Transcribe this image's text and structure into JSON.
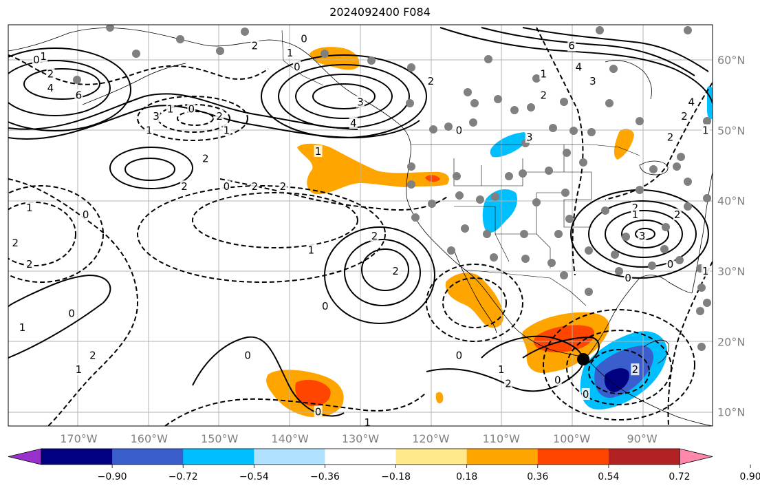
{
  "title": "2024092400 F084",
  "map": {
    "lon_range": [
      -180,
      -80
    ],
    "lat_range": [
      8,
      65
    ],
    "lon_ticks": [
      "170°W",
      "160°W",
      "150°W",
      "140°W",
      "130°W",
      "120°W",
      "110°W",
      "100°W",
      "90°W"
    ],
    "lat_ticks": [
      "10°N",
      "20°N",
      "30°N",
      "40°N",
      "50°N",
      "60°N"
    ],
    "grid": true
  },
  "colorbar": {
    "labels": [
      "−0.90",
      "−0.72",
      "−0.54",
      "−0.36",
      "−0.18",
      "0.18",
      "0.36",
      "0.54",
      "0.72",
      "0.90"
    ],
    "colors": [
      "#9932cc",
      "#000080",
      "#3a5fcd",
      "#00bfff",
      "#b0e2ff",
      "#ffffff",
      "#ffe98a",
      "#ffa500",
      "#ff4500",
      "#b22222",
      "#ff88aa"
    ],
    "extend": "both"
  },
  "contour_labels": [
    {
      "text": "0",
      "lon": -176,
      "lat": 60
    },
    {
      "text": "1",
      "lon": -175,
      "lat": 60.5
    },
    {
      "text": "2",
      "lon": -174,
      "lat": 58
    },
    {
      "text": "4",
      "lon": -174,
      "lat": 56
    },
    {
      "text": "6",
      "lon": -170,
      "lat": 55
    },
    {
      "text": "3",
      "lon": -159,
      "lat": 52
    },
    {
      "text": "1",
      "lon": -160,
      "lat": 50
    },
    {
      "text": "1",
      "lon": -157,
      "lat": 53
    },
    {
      "text": "0",
      "lon": -154,
      "lat": 53
    },
    {
      "text": "2",
      "lon": -150,
      "lat": 52
    },
    {
      "text": "1",
      "lon": -149,
      "lat": 50
    },
    {
      "text": "2",
      "lon": -152,
      "lat": 46
    },
    {
      "text": "2",
      "lon": -155,
      "lat": 42
    },
    {
      "text": "2",
      "lon": -145,
      "lat": 62
    },
    {
      "text": "0",
      "lon": -138,
      "lat": 63
    },
    {
      "text": "1",
      "lon": -140,
      "lat": 61
    },
    {
      "text": "0",
      "lon": -139,
      "lat": 59
    },
    {
      "text": "2",
      "lon": -120,
      "lat": 57
    },
    {
      "text": "3",
      "lon": -130,
      "lat": 54
    },
    {
      "text": "4",
      "lon": -131,
      "lat": 51
    },
    {
      "text": "1",
      "lon": -136,
      "lat": 47
    },
    {
      "text": "0",
      "lon": -149,
      "lat": 42
    },
    {
      "text": "2",
      "lon": -145,
      "lat": 42
    },
    {
      "text": "2",
      "lon": -141,
      "lat": 42
    },
    {
      "text": "0",
      "lon": -116,
      "lat": 50
    },
    {
      "text": "3",
      "lon": -106,
      "lat": 49
    },
    {
      "text": "6",
      "lon": -100,
      "lat": 62
    },
    {
      "text": "4",
      "lon": -99,
      "lat": 59
    },
    {
      "text": "3",
      "lon": -97,
      "lat": 57
    },
    {
      "text": "1",
      "lon": -104,
      "lat": 58
    },
    {
      "text": "2",
      "lon": -104,
      "lat": 55
    },
    {
      "text": "4",
      "lon": -83,
      "lat": 54
    },
    {
      "text": "2",
      "lon": -86,
      "lat": 49
    },
    {
      "text": "1",
      "lon": -177,
      "lat": 39
    },
    {
      "text": "0",
      "lon": -169,
      "lat": 38
    },
    {
      "text": "2",
      "lon": -179,
      "lat": 34
    },
    {
      "text": "2",
      "lon": -177,
      "lat": 31
    },
    {
      "text": "1",
      "lon": -178,
      "lat": 22
    },
    {
      "text": "0",
      "lon": -171,
      "lat": 24
    },
    {
      "text": "2",
      "lon": -168,
      "lat": 18
    },
    {
      "text": "1",
      "lon": -170,
      "lat": 16
    },
    {
      "text": "1",
      "lon": -137,
      "lat": 33
    },
    {
      "text": "2",
      "lon": -128,
      "lat": 35
    },
    {
      "text": "2",
      "lon": -125,
      "lat": 30
    },
    {
      "text": "0",
      "lon": -135,
      "lat": 25
    },
    {
      "text": "0",
      "lon": -146,
      "lat": 18
    },
    {
      "text": "0",
      "lon": -136,
      "lat": 10
    },
    {
      "text": "1",
      "lon": -129,
      "lat": 8.5
    },
    {
      "text": "0",
      "lon": -116,
      "lat": 18
    },
    {
      "text": "1",
      "lon": -110,
      "lat": 16
    },
    {
      "text": "2",
      "lon": -109,
      "lat": 14
    },
    {
      "text": "0",
      "lon": -102,
      "lat": 14.5
    },
    {
      "text": "0",
      "lon": -98,
      "lat": 12.5
    },
    {
      "text": "2",
      "lon": -91,
      "lat": 16
    },
    {
      "text": "0",
      "lon": -92,
      "lat": 29
    },
    {
      "text": "2",
      "lon": -91,
      "lat": 39
    },
    {
      "text": "1",
      "lon": -91,
      "lat": 38
    },
    {
      "text": "3",
      "lon": -90,
      "lat": 35
    },
    {
      "text": "2",
      "lon": -85,
      "lat": 38
    },
    {
      "text": "1",
      "lon": -81,
      "lat": 30
    },
    {
      "text": "0",
      "lon": -86,
      "lat": 31
    },
    {
      "text": "2",
      "lon": -84,
      "lat": 52
    },
    {
      "text": "1",
      "lon": -81,
      "lat": 50
    }
  ]
}
